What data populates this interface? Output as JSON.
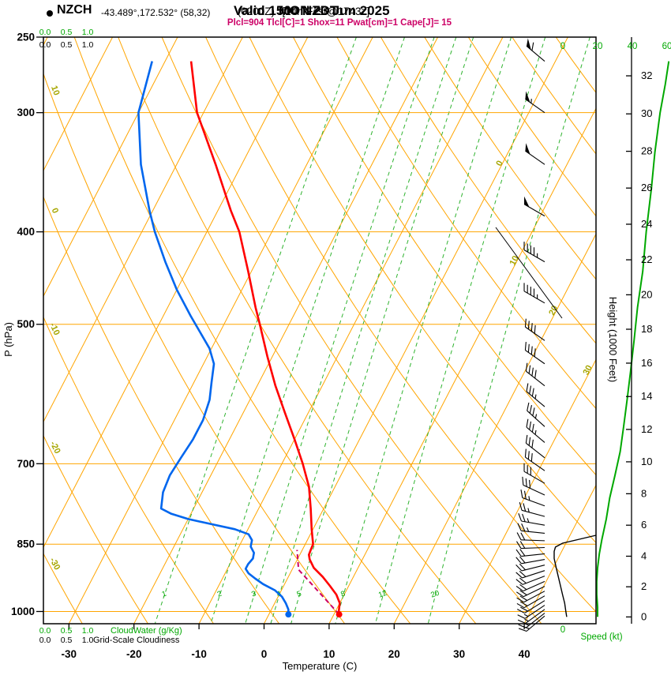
{
  "title": {
    "station": "NZCH",
    "coords": "-43.489°,172.532° (58,32)",
    "valid_bold": "Valid 1500 NZDT",
    "valid_z": "(0200Z)",
    "valid_date": "MON 23 Jun 2025",
    "fcst": "[14hrFcst@1743z]"
  },
  "stats_line": "Plcl=904 Tlcl[C]=1 Shox=11 Pwat[cm]=1 Cape[J]= 15",
  "axes": {
    "pressure_label": "P (hPa)",
    "pressure_ticks": [
      250,
      300,
      400,
      500,
      700,
      850,
      1000
    ],
    "temp_label": "Temperature (C)",
    "temp_ticks": [
      -30,
      -20,
      -10,
      0,
      10,
      20,
      30,
      40
    ],
    "height_label": "Height (1000 Feet)",
    "height_ticks": [
      0,
      2,
      4,
      6,
      8,
      10,
      12,
      14,
      16,
      18,
      20,
      22,
      24,
      26,
      28,
      30,
      32
    ],
    "speed_label": "Speed (kt)",
    "speed_ticks": [
      0,
      20,
      40,
      60
    ],
    "speed_bottom_tick": "0",
    "cloud_scale_ticks": [
      "0.0",
      "0.5",
      "1.0"
    ],
    "cloudwater_label": "CloudWater (g/Kg)",
    "cloudiness_label": "Grid-Scale Cloudiness"
  },
  "grid": {
    "isobars": [
      300,
      400,
      500,
      700,
      850,
      1000
    ],
    "isotherm_min": -80,
    "isotherm_max": 40,
    "isotherm_step": 10,
    "adiabat_min": -30,
    "adiabat_max": 140,
    "adiabat_step": 10,
    "adiabat_labels": [
      10,
      0,
      -10,
      -20,
      -30
    ],
    "isotherm_labels": [
      {
        "t": 0,
        "p": 340
      },
      {
        "t": 10,
        "p": 430
      },
      {
        "t": 20,
        "p": 485
      },
      {
        "t": 30,
        "p": 560
      }
    ],
    "mixing_ratios": [
      1,
      2,
      3,
      4,
      5,
      8,
      12,
      20
    ]
  },
  "chart_data": {
    "type": "skewt_log_p_sounding",
    "pressure_range_hpa": [
      250,
      1030
    ],
    "surface": {
      "pressure_hpa": 1007,
      "temp_c": 11,
      "dewpoint_c": 3
    },
    "temperature": [
      [
        265,
        -56
      ],
      [
        300,
        -51
      ],
      [
        340,
        -44
      ],
      [
        380,
        -38
      ],
      [
        400,
        -35
      ],
      [
        440,
        -30.5
      ],
      [
        480,
        -26.5
      ],
      [
        500,
        -24.5
      ],
      [
        540,
        -20.8
      ],
      [
        580,
        -17.2
      ],
      [
        620,
        -13.5
      ],
      [
        660,
        -10
      ],
      [
        700,
        -6.8
      ],
      [
        740,
        -4
      ],
      [
        780,
        -2
      ],
      [
        820,
        -0.2
      ],
      [
        850,
        1.2
      ],
      [
        862,
        1.3
      ],
      [
        872,
        1.4
      ],
      [
        882,
        1.9
      ],
      [
        900,
        3.2
      ],
      [
        920,
        5.3
      ],
      [
        940,
        7.1
      ],
      [
        960,
        8.8
      ],
      [
        980,
        10
      ],
      [
        1000,
        10.5
      ],
      [
        1007,
        10.8
      ]
    ],
    "dewpoint": [
      [
        265,
        -62
      ],
      [
        300,
        -60
      ],
      [
        340,
        -55.5
      ],
      [
        380,
        -50.5
      ],
      [
        400,
        -48
      ],
      [
        430,
        -44
      ],
      [
        460,
        -40
      ],
      [
        490,
        -35.8
      ],
      [
        510,
        -33
      ],
      [
        530,
        -30.3
      ],
      [
        550,
        -28.4
      ],
      [
        575,
        -27.3
      ],
      [
        600,
        -26.2
      ],
      [
        630,
        -25.6
      ],
      [
        660,
        -25.6
      ],
      [
        690,
        -26
      ],
      [
        720,
        -26.3
      ],
      [
        750,
        -26
      ],
      [
        780,
        -25
      ],
      [
        790,
        -23
      ],
      [
        800,
        -20
      ],
      [
        810,
        -16
      ],
      [
        820,
        -12
      ],
      [
        830,
        -9.5
      ],
      [
        842,
        -8.5
      ],
      [
        855,
        -8.2
      ],
      [
        868,
        -7.2
      ],
      [
        880,
        -6.9
      ],
      [
        892,
        -7.2
      ],
      [
        902,
        -7.2
      ],
      [
        912,
        -6.4
      ],
      [
        924,
        -4.9
      ],
      [
        936,
        -3.3
      ],
      [
        950,
        -1
      ],
      [
        965,
        0.6
      ],
      [
        980,
        1.7
      ],
      [
        995,
        2.6
      ],
      [
        1007,
        3
      ]
    ],
    "parcel": [
      [
        1007,
        10.8
      ],
      [
        904,
        1.0
      ],
      [
        862,
        -0.8
      ]
    ],
    "wind_barbs": [
      [
        265,
        310,
        60
      ],
      [
        300,
        305,
        55
      ],
      [
        340,
        305,
        52
      ],
      [
        385,
        300,
        50
      ],
      [
        430,
        300,
        47
      ],
      [
        475,
        300,
        45
      ],
      [
        520,
        305,
        42
      ],
      [
        550,
        305,
        40
      ],
      [
        580,
        308,
        38
      ],
      [
        610,
        310,
        37
      ],
      [
        640,
        312,
        35
      ],
      [
        665,
        310,
        34
      ],
      [
        690,
        308,
        32
      ],
      [
        712,
        305,
        31
      ],
      [
        734,
        300,
        29
      ],
      [
        755,
        295,
        28
      ],
      [
        775,
        290,
        26
      ],
      [
        795,
        285,
        25
      ],
      [
        812,
        280,
        24
      ],
      [
        828,
        276,
        23
      ],
      [
        843,
        272,
        22
      ],
      [
        857,
        268,
        21
      ],
      [
        870,
        264,
        21
      ],
      [
        882,
        260,
        20
      ],
      [
        894,
        256,
        20
      ],
      [
        906,
        252,
        20
      ],
      [
        918,
        249,
        20
      ],
      [
        930,
        246,
        20
      ],
      [
        941,
        244,
        19
      ],
      [
        952,
        242,
        19
      ],
      [
        963,
        240,
        18
      ],
      [
        974,
        238,
        18
      ],
      [
        985,
        236,
        17
      ],
      [
        995,
        234,
        16
      ],
      [
        1004,
        232,
        15
      ],
      [
        1011,
        230,
        15
      ]
    ],
    "speed_profile_kt": [
      [
        265,
        61
      ],
      [
        280,
        59
      ],
      [
        300,
        56
      ],
      [
        330,
        53
      ],
      [
        360,
        51
      ],
      [
        400,
        48
      ],
      [
        440,
        46
      ],
      [
        480,
        43
      ],
      [
        520,
        41
      ],
      [
        560,
        39
      ],
      [
        600,
        37
      ],
      [
        640,
        35
      ],
      [
        680,
        33
      ],
      [
        720,
        30
      ],
      [
        760,
        27
      ],
      [
        800,
        25
      ],
      [
        840,
        22.5
      ],
      [
        870,
        21
      ],
      [
        900,
        20
      ],
      [
        930,
        19.5
      ],
      [
        960,
        19.5
      ],
      [
        990,
        20
      ],
      [
        1013,
        20
      ]
    ],
    "cloudiness_profile": [
      [
        832,
        0
      ],
      [
        840,
        0.4
      ],
      [
        848,
        0.8
      ],
      [
        856,
        0.97
      ],
      [
        865,
        1.0
      ],
      [
        880,
        1.0
      ],
      [
        900,
        0.95
      ],
      [
        920,
        0.9
      ],
      [
        940,
        0.85
      ],
      [
        960,
        0.8
      ],
      [
        980,
        0.75
      ],
      [
        1000,
        0.72
      ],
      [
        1013,
        0.7
      ]
    ]
  },
  "decor": {
    "diagonal_line": [
      [
        628,
        288
      ],
      [
        712,
        403
      ]
    ]
  },
  "colors": {
    "grid_orange": "#FFA500",
    "label_olive": "#A6A600",
    "green": "#00A800",
    "mixing_green": "#2FB32F",
    "temp_red": "#FF0000",
    "dew_blue": "#0066EE",
    "parcel_magenta": "#CC0066",
    "black": "#000000"
  }
}
